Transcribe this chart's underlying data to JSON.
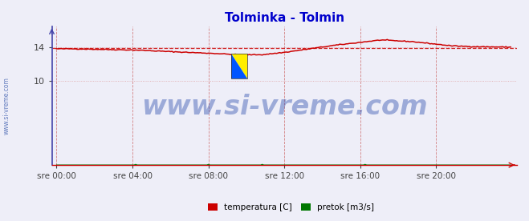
{
  "title": "Tolminka - Tolmin",
  "title_color": "#0000cc",
  "bg_color": "#eeeef8",
  "plot_bg_color": "#eeeef8",
  "ylim": [
    0,
    16.5
  ],
  "yticks": [
    10,
    14
  ],
  "xtick_labels": [
    "sre 00:00",
    "sre 04:00",
    "sre 08:00",
    "sre 12:00",
    "sre 16:00",
    "sre 20:00"
  ],
  "xtick_positions": [
    0,
    48,
    96,
    144,
    192,
    240
  ],
  "n_points": 288,
  "temp_color": "#cc0000",
  "pretok_color": "#007700",
  "avg_line_color": "#cc0000",
  "grid_color_v": "#cc6666",
  "grid_color_h": "#dd9999",
  "watermark_text": "www.si-vreme.com",
  "watermark_color": "#2244aa",
  "watermark_fontsize": 24,
  "legend_labels": [
    "temperatura [C]",
    "pretok [m3/s]"
  ],
  "legend_colors": [
    "#cc0000",
    "#007700"
  ],
  "avg_temp": 13.9,
  "left_spine_color": "#4444aa",
  "bottom_spine_color": "#cc0000",
  "tick_color": "#444444"
}
